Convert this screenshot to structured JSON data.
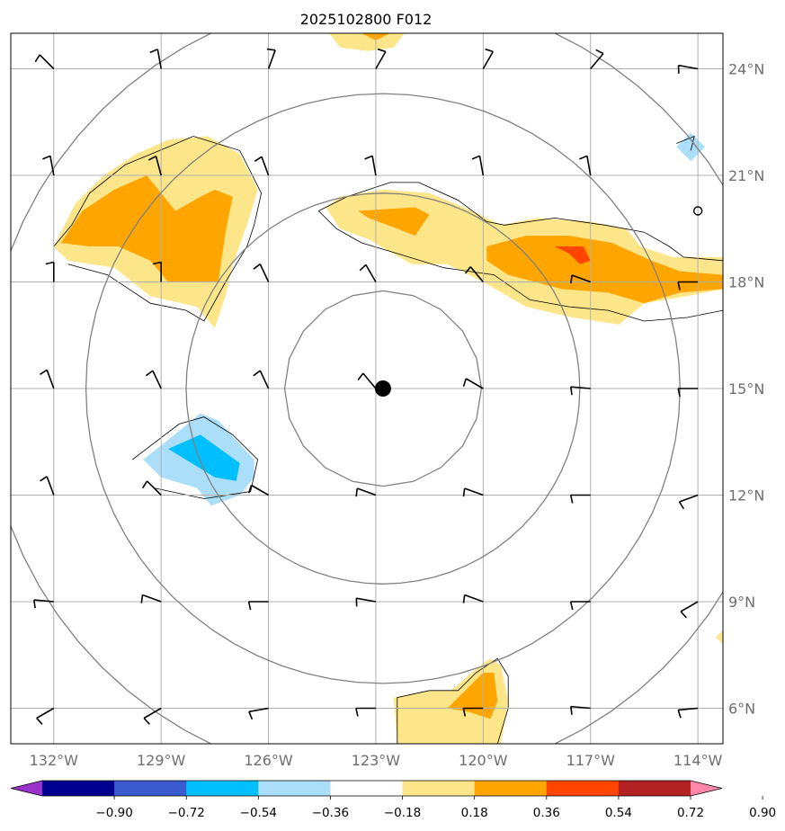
{
  "chart_data": {
    "type": "contour-map",
    "title": "2025102800 F012",
    "projection": "equirectangular, centered on storm",
    "lon_range": [
      -133.2,
      -113.3
    ],
    "lat_range": [
      5,
      25
    ],
    "center": {
      "lon": -122.8,
      "lat": 15.0
    },
    "x_ticks": [
      {
        "lon": -132,
        "label": "132°W"
      },
      {
        "lon": -129,
        "label": "129°W"
      },
      {
        "lon": -126,
        "label": "126°W"
      },
      {
        "lon": -123,
        "label": "123°W"
      },
      {
        "lon": -120,
        "label": "120°W"
      },
      {
        "lon": -117,
        "label": "117°W"
      },
      {
        "lon": -114,
        "label": "114°W"
      }
    ],
    "y_ticks": [
      {
        "lat": 6,
        "label": "6°N"
      },
      {
        "lat": 9,
        "label": "9°N"
      },
      {
        "lat": 12,
        "label": "12°N"
      },
      {
        "lat": 15,
        "label": "15°N"
      },
      {
        "lat": 18,
        "label": "18°N"
      },
      {
        "lat": 21,
        "label": "21°N"
      },
      {
        "lat": 24,
        "label": "24°N"
      }
    ],
    "range_rings_deg": [
      2.75,
      5.5,
      8.3,
      11.1
    ],
    "colorbar": {
      "levels": [
        "−0.90",
        "−0.72",
        "−0.54",
        "−0.36",
        "−0.18",
        "0.18",
        "0.36",
        "0.54",
        "0.72",
        "0.90"
      ],
      "colors": [
        "#9933cc",
        "#000090",
        "#3a5bd0",
        "#00bfff",
        "#abdff9",
        "#ffffff",
        "#fde68a",
        "#ffa500",
        "#ff4500",
        "#b22222",
        "#ff88aa"
      ]
    },
    "shaded_regions": [
      {
        "name": "northwest-cluster",
        "level_color": "#fde68a",
        "points": [
          [
            -132,
            19
          ],
          [
            -131.4,
            20.2
          ],
          [
            -130.6,
            21
          ],
          [
            -129.7,
            21.6
          ],
          [
            -128.8,
            22
          ],
          [
            -127.7,
            22.1
          ],
          [
            -126.8,
            21.6
          ],
          [
            -126.3,
            20.6
          ],
          [
            -126.6,
            19.6
          ],
          [
            -127,
            18.5
          ],
          [
            -127.2,
            17.6
          ],
          [
            -127.5,
            16.7
          ],
          [
            -128,
            17.3
          ],
          [
            -129.3,
            17.6
          ],
          [
            -130.3,
            18.4
          ],
          [
            -131.6,
            18.6
          ]
        ]
      },
      {
        "name": "northwest-cluster",
        "level_color": "#ffa500",
        "points": [
          [
            -131.8,
            19.1
          ],
          [
            -131.2,
            20
          ],
          [
            -130.3,
            20.6
          ],
          [
            -129.4,
            21
          ],
          [
            -128.6,
            20
          ],
          [
            -127.9,
            20.4
          ],
          [
            -127.5,
            20.6
          ],
          [
            -127,
            20.4
          ],
          [
            -127.2,
            19.4
          ],
          [
            -127.4,
            18
          ],
          [
            -128.8,
            18
          ],
          [
            -129.3,
            18.6
          ],
          [
            -130.2,
            19
          ],
          [
            -131,
            19
          ]
        ]
      },
      {
        "name": "north-edge",
        "level_color": "#fde68a",
        "points": [
          [
            -124.3,
            25
          ],
          [
            -122.2,
            25
          ],
          [
            -122.5,
            24.6
          ],
          [
            -123.2,
            24.5
          ],
          [
            -124,
            24.6
          ]
        ]
      },
      {
        "name": "north-edge",
        "level_color": "#ffa500",
        "points": [
          [
            -123.4,
            25
          ],
          [
            -123,
            24.8
          ],
          [
            -122.6,
            25
          ]
        ]
      },
      {
        "name": "north-band",
        "level_color": "#fde68a",
        "points": [
          [
            -124.4,
            20.1
          ],
          [
            -124,
            20.4
          ],
          [
            -122.8,
            20.6
          ],
          [
            -121.5,
            20.5
          ],
          [
            -120.3,
            20
          ],
          [
            -119.5,
            19.6
          ],
          [
            -118.5,
            19.8
          ],
          [
            -117,
            19.7
          ],
          [
            -116,
            19.5
          ],
          [
            -115.6,
            19
          ],
          [
            -114.7,
            18.7
          ],
          [
            -113.3,
            18.7
          ],
          [
            -113.3,
            17.8
          ],
          [
            -114.3,
            17.6
          ],
          [
            -115.5,
            17.4
          ],
          [
            -116.2,
            16.8
          ],
          [
            -117.5,
            17
          ],
          [
            -118.8,
            17.3
          ],
          [
            -120,
            18
          ],
          [
            -121,
            18.5
          ],
          [
            -122,
            18.5
          ],
          [
            -123.2,
            19.2
          ],
          [
            -124,
            19.5
          ]
        ]
      },
      {
        "name": "north-band",
        "level_color": "#ffa500",
        "points": [
          [
            -123.5,
            20
          ],
          [
            -121.9,
            20.1
          ],
          [
            -121.5,
            19.9
          ],
          [
            -121.9,
            19.3
          ],
          [
            -122.4,
            19.5
          ],
          [
            -123.2,
            19.8
          ]
        ]
      },
      {
        "name": "north-band",
        "level_color": "#ffa500",
        "points": [
          [
            -119.9,
            19
          ],
          [
            -118.8,
            19.3
          ],
          [
            -117.6,
            19.3
          ],
          [
            -116.4,
            19.1
          ],
          [
            -115.3,
            18.6
          ],
          [
            -114.5,
            18.3
          ],
          [
            -113.3,
            18.2
          ],
          [
            -113.3,
            17.8
          ],
          [
            -114.5,
            17.7
          ],
          [
            -115.5,
            17.4
          ],
          [
            -116.5,
            17.7
          ],
          [
            -117.8,
            17.8
          ],
          [
            -119.3,
            18.2
          ],
          [
            -119.9,
            18.6
          ]
        ]
      },
      {
        "name": "north-band",
        "level_color": "#ff4500",
        "points": [
          [
            -118,
            19
          ],
          [
            -117.2,
            19
          ],
          [
            -117,
            18.6
          ],
          [
            -117.3,
            18.5
          ],
          [
            -117.6,
            18.8
          ]
        ]
      },
      {
        "name": "southwest-cell",
        "level_color": "#abdff9",
        "points": [
          [
            -129.5,
            13
          ],
          [
            -128.5,
            13.8
          ],
          [
            -127.9,
            14.3
          ],
          [
            -127.4,
            14.1
          ],
          [
            -126.4,
            13
          ],
          [
            -126.4,
            12.5
          ],
          [
            -126.8,
            12
          ],
          [
            -127.6,
            11.7
          ],
          [
            -128,
            12.2
          ],
          [
            -129,
            12.5
          ]
        ]
      },
      {
        "name": "southwest-cell",
        "level_color": "#00bfff",
        "points": [
          [
            -128.8,
            13.3
          ],
          [
            -127.9,
            13.7
          ],
          [
            -126.8,
            12.9
          ],
          [
            -126.9,
            12.4
          ],
          [
            -127.5,
            12.5
          ]
        ]
      },
      {
        "name": "south-cell",
        "level_color": "#fde68a",
        "points": [
          [
            -122.4,
            5
          ],
          [
            -122.5,
            6.3
          ],
          [
            -121.5,
            6.5
          ],
          [
            -120.9,
            6.5
          ],
          [
            -120.2,
            7.1
          ],
          [
            -119.8,
            7.4
          ],
          [
            -119.5,
            7.2
          ],
          [
            -119.3,
            6.2
          ],
          [
            -119.5,
            5
          ],
          [
            -119.5,
            5
          ]
        ]
      },
      {
        "name": "south-cell",
        "level_color": "#ffa500",
        "points": [
          [
            -121,
            6
          ],
          [
            -120.6,
            6.4
          ],
          [
            -120,
            7
          ],
          [
            -119.7,
            7
          ],
          [
            -119.6,
            6.2
          ],
          [
            -119.8,
            5.7
          ],
          [
            -120.4,
            5.9
          ]
        ]
      },
      {
        "name": "east-dot",
        "level_color": "#fde68a",
        "points": [
          [
            -113.3,
            8.2
          ],
          [
            -113.5,
            8
          ],
          [
            -113.3,
            7.8
          ]
        ]
      },
      {
        "name": "northeast-blue",
        "level_color": "#abdff9",
        "points": [
          [
            -114.6,
            21.8
          ],
          [
            -114.2,
            22.2
          ],
          [
            -113.8,
            21.8
          ],
          [
            -114.2,
            21.4
          ]
        ]
      }
    ],
    "contour_lines": [
      {
        "name": "nw-outline",
        "points": [
          [
            -132,
            19
          ],
          [
            -131.5,
            19.6
          ],
          [
            -131,
            20.5
          ],
          [
            -130,
            21.3
          ],
          [
            -128.8,
            21.8
          ],
          [
            -128.1,
            22.1
          ],
          [
            -126.8,
            21.7
          ],
          [
            -126.2,
            20.5
          ],
          [
            -126.4,
            19.6
          ],
          [
            -126.6,
            19
          ],
          [
            -127.2,
            18
          ],
          [
            -127.8,
            16.9
          ],
          [
            -128.3,
            17.2
          ],
          [
            -129.3,
            17.4
          ],
          [
            -130.5,
            18.2
          ],
          [
            -131.6,
            18.5
          ]
        ]
      },
      {
        "name": "north-band-outline",
        "points": [
          [
            -124.6,
            20
          ],
          [
            -123.8,
            20.4
          ],
          [
            -122.6,
            20.8
          ],
          [
            -121.8,
            20.8
          ],
          [
            -120.7,
            20.3
          ],
          [
            -119.9,
            19.7
          ],
          [
            -119.4,
            19.6
          ],
          [
            -118,
            19.8
          ],
          [
            -116.6,
            19.6
          ],
          [
            -115.5,
            19.4
          ],
          [
            -114.8,
            19
          ],
          [
            -114.4,
            18.7
          ],
          [
            -113.3,
            18.6
          ]
        ]
      },
      {
        "name": "north-band-outline-lower",
        "points": [
          [
            -124.6,
            20
          ],
          [
            -124.1,
            19.5
          ],
          [
            -123.4,
            19.1
          ],
          [
            -122.4,
            18.8
          ],
          [
            -121.1,
            18.4
          ],
          [
            -119.7,
            18.2
          ],
          [
            -118.7,
            17.5
          ],
          [
            -117.6,
            17.3
          ],
          [
            -116.5,
            17.2
          ],
          [
            -115.5,
            16.9
          ],
          [
            -114.3,
            17
          ],
          [
            -113.3,
            17.2
          ]
        ]
      },
      {
        "name": "sw-outline",
        "points": [
          [
            -129.8,
            13
          ],
          [
            -128.5,
            14
          ],
          [
            -127.8,
            14.2
          ],
          [
            -127,
            13.7
          ],
          [
            -126.3,
            13
          ],
          [
            -126.5,
            12.1
          ],
          [
            -127.8,
            11.9
          ],
          [
            -129.2,
            12.2
          ]
        ]
      },
      {
        "name": "s-outline",
        "points": [
          [
            -122.4,
            5
          ],
          [
            -122.4,
            6.3
          ],
          [
            -121.5,
            6.5
          ],
          [
            -120.7,
            6.5
          ],
          [
            -120.2,
            7
          ],
          [
            -119.6,
            7.4
          ],
          [
            -119.3,
            6.9
          ],
          [
            -119.3,
            6
          ],
          [
            -119.6,
            5
          ]
        ]
      },
      {
        "name": "ne-small",
        "points": [
          [
            -114.6,
            21.9
          ],
          [
            -114.1,
            22.1
          ],
          [
            -114.2,
            21.7
          ]
        ]
      }
    ],
    "storm_center_marker": {
      "lon": -122.8,
      "lat": 15.0,
      "symbol": "filled-circle"
    },
    "small_circle_marker": {
      "lon": -114,
      "lat": 20.0,
      "symbol": "open-circle"
    },
    "wind_barbs": {
      "lons": [
        -132,
        -129,
        -126,
        -123,
        -120,
        -117,
        -114
      ],
      "lats": [
        24,
        21,
        18,
        15,
        12,
        9,
        6
      ],
      "directions_deg": [
        [
          315,
          350,
          20,
          30,
          30,
          40,
          280
        ],
        [
          350,
          345,
          340,
          350,
          350,
          350,
          null
        ],
        [
          360,
          360,
          335,
          330,
          320,
          290,
          270
        ],
        [
          340,
          335,
          335,
          320,
          300,
          275,
          270
        ],
        [
          340,
          315,
          300,
          290,
          290,
          270,
          250
        ],
        [
          275,
          290,
          270,
          280,
          290,
          270,
          240
        ],
        [
          240,
          240,
          260,
          270,
          270,
          275,
          265
        ]
      ]
    }
  }
}
